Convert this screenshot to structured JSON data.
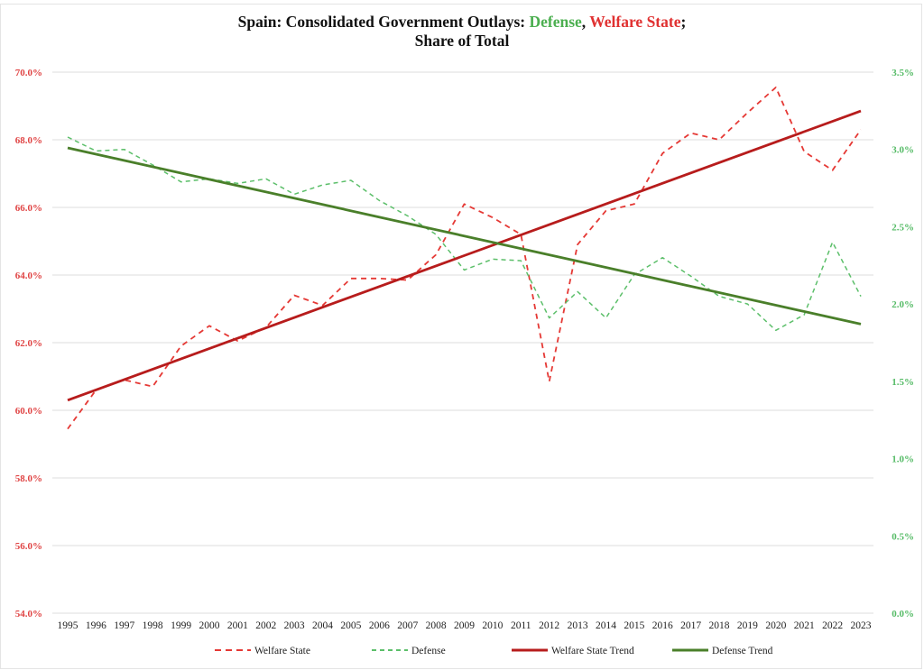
{
  "chart_data": {
    "type": "line",
    "title_parts": {
      "prefix": "Spain: Consolidated Government Outlays: ",
      "defense": "Defense",
      "sep": ", ",
      "welfare": "Welfare State",
      "suffix": ";",
      "line2": "Share of Total"
    },
    "title": "Spain: Consolidated Government Outlays: Defense, Welfare State; Share of Total",
    "xlabel": "",
    "ylabel_left": "",
    "ylabel_right": "",
    "x": [
      "1995",
      "1996",
      "1997",
      "1998",
      "1999",
      "2000",
      "2001",
      "2002",
      "2003",
      "2004",
      "2005",
      "2006",
      "2007",
      "2008",
      "2009",
      "2010",
      "2011",
      "2012",
      "2013",
      "2014",
      "2015",
      "2016",
      "2017",
      "2018",
      "2019",
      "2020",
      "2021",
      "2022",
      "2023"
    ],
    "y_left": {
      "min": 54.0,
      "max": 70.0,
      "step": 2.0,
      "ticks": [
        "54.0%",
        "56.0%",
        "58.0%",
        "60.0%",
        "62.0%",
        "64.0%",
        "66.0%",
        "68.0%",
        "70.0%"
      ]
    },
    "y_right": {
      "min": 0.0,
      "max": 3.5,
      "step": 0.5,
      "ticks": [
        "0.0%",
        "0.5%",
        "1.0%",
        "1.5%",
        "2.0%",
        "2.5%",
        "3.0%",
        "3.5%"
      ]
    },
    "grid": true,
    "legend_position": "bottom",
    "colors": {
      "welfare": "#e53935",
      "defense": "#5cbf6a",
      "welfare_trend": "#b71c1c",
      "defense_trend": "#4a7f2a",
      "left_axis": "#e04545",
      "right_axis": "#55bb66"
    },
    "series": [
      {
        "name": "Welfare State",
        "axis": "left",
        "style": "dashed",
        "values": [
          59.45,
          60.6,
          60.9,
          60.7,
          61.9,
          62.5,
          62.05,
          62.45,
          63.4,
          63.1,
          63.9,
          63.9,
          63.85,
          64.6,
          66.1,
          65.7,
          65.2,
          60.85,
          64.9,
          65.9,
          66.1,
          67.6,
          68.2,
          68.0,
          68.8,
          69.55,
          67.65,
          67.1,
          68.3
        ]
      },
      {
        "name": "Defense",
        "axis": "right",
        "style": "dashed",
        "values": [
          3.08,
          2.99,
          3.0,
          2.9,
          2.79,
          2.81,
          2.78,
          2.81,
          2.71,
          2.77,
          2.8,
          2.67,
          2.57,
          2.45,
          2.22,
          2.29,
          2.28,
          1.91,
          2.08,
          1.91,
          2.19,
          2.3,
          2.18,
          2.05,
          2.0,
          1.83,
          1.93,
          2.4,
          2.05
        ]
      },
      {
        "name": "Welfare State Trend",
        "axis": "left",
        "style": "solid",
        "start": 60.3,
        "end": 68.85
      },
      {
        "name": "Defense Trend",
        "axis": "right",
        "style": "solid",
        "start": 3.01,
        "end": 1.87
      }
    ],
    "legend": [
      "Welfare State",
      "Defense",
      "Welfare State Trend",
      "Defense Trend"
    ]
  }
}
